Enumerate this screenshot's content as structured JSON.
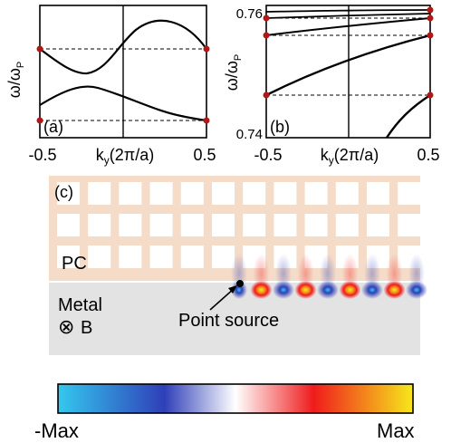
{
  "panel_a": {
    "label": "(a)",
    "ylabel": "ω/ω",
    "ylabel_sub": "P",
    "xticks": [
      "-0.5",
      "0.5"
    ],
    "xlabel_k": "k",
    "xlabel_sub": "y",
    "xlabel_rest": "(2π/a)"
  },
  "panel_b": {
    "label": "(b)",
    "ylabel": "ω/ω",
    "ylabel_sub": "P",
    "yticks": [
      "0.76",
      "0.74"
    ],
    "xticks": [
      "-0.5",
      "0.5"
    ],
    "xlabel_k": "k",
    "xlabel_sub": "y",
    "xlabel_rest": "(2π/a)"
  },
  "panel_c": {
    "label": "(c)",
    "pc_label": "PC",
    "metal_label": "Metal",
    "b_symbol": "⊗",
    "b_label": "B",
    "source_label": "Point source"
  },
  "colorbar": {
    "min_label": "-Max",
    "max_label": "Max",
    "colors": [
      "#34c8ee",
      "#2f3fb8",
      "#ffffff",
      "#ef1c1c",
      "#f6e81c"
    ]
  },
  "chart_data": [
    {
      "type": "line",
      "panel": "(a)",
      "x_range": [
        -0.5,
        0.5
      ],
      "xlabel": "ky(2π/a)",
      "ylabel": "ω/ωP",
      "grid": false,
      "series": [
        {
          "x": [
            -0.5,
            -0.35,
            -0.2,
            -0.1,
            0.0,
            0.1,
            0.2,
            0.35,
            0.5
          ],
          "y": [
            0.35,
            0.5,
            0.58,
            0.55,
            0.48,
            0.38,
            0.27,
            0.18,
            0.12
          ]
        },
        {
          "x": [
            -0.5,
            -0.35,
            -0.25,
            -0.15,
            0.0,
            0.15,
            0.3,
            0.4,
            0.5
          ],
          "y": [
            0.8,
            0.68,
            0.58,
            0.62,
            0.8,
            0.93,
            0.99,
            0.96,
            0.8
          ]
        }
      ]
    },
    {
      "type": "line",
      "panel": "(b)",
      "x_range": [
        -0.5,
        0.5
      ],
      "y_range": [
        0.74,
        0.76
      ],
      "yticks": [
        0.74,
        0.76
      ],
      "xlabel": "ky(2π/a)",
      "ylabel": "ω/ωP",
      "grid": false,
      "series": [
        {
          "x": [
            0.14,
            0.3,
            0.5
          ],
          "y": [
            0.74,
            0.7423,
            0.7448
          ]
        },
        {
          "x": [
            -0.5,
            -0.2,
            0.0,
            0.2,
            0.5
          ],
          "y": [
            0.7466,
            0.7502,
            0.7522,
            0.7537,
            0.7552
          ]
        },
        {
          "x": [
            -0.5,
            0.0,
            0.5
          ],
          "y": [
            0.7569,
            0.758,
            0.7589
          ]
        },
        {
          "x": [
            -0.5,
            0.0,
            0.5
          ],
          "y": [
            0.7582,
            0.7593,
            0.7598
          ]
        },
        {
          "x": [
            -0.5,
            0.0,
            0.5
          ],
          "y": [
            0.7593,
            0.7598,
            0.7601
          ]
        }
      ]
    }
  ]
}
